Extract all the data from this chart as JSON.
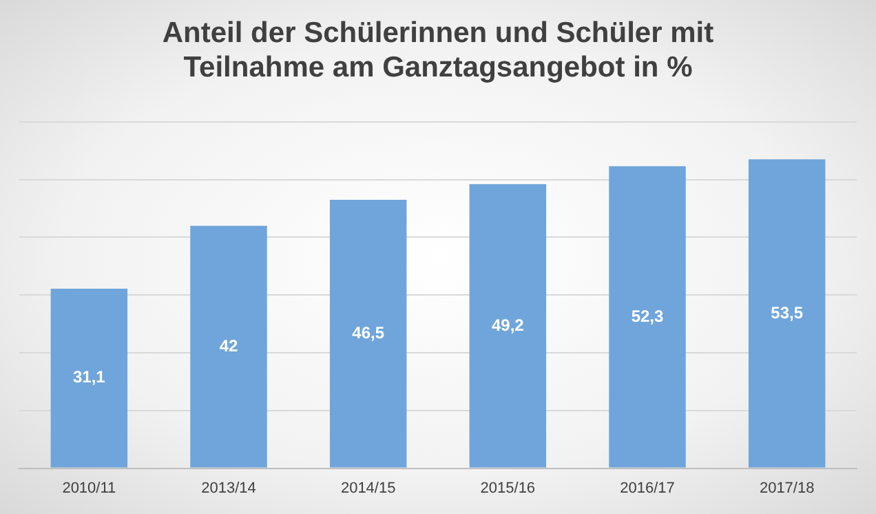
{
  "chart_data": {
    "type": "bar",
    "title": "Anteil der Schülerinnen und Schüler mit Teilnahme am Ganztagsangebot in %",
    "categories": [
      "2010/11",
      "2013/14",
      "2014/15",
      "2015/16",
      "2016/17",
      "2017/18"
    ],
    "values": [
      31.1,
      42,
      46.5,
      49.2,
      52.3,
      53.5
    ],
    "value_labels": [
      "31,1",
      "42",
      "46,5",
      "49,2",
      "52,3",
      "53,5"
    ],
    "color": "#6fa5da",
    "ylim": [
      0,
      60
    ],
    "yticks": [
      {
        "value": 0,
        "label": null
      },
      {
        "value": 10,
        "label": null
      },
      {
        "value": 20,
        "label": null
      },
      {
        "value": 30,
        "label": null
      },
      {
        "value": 40,
        "label": null
      },
      {
        "value": 50,
        "label": null
      },
      {
        "value": 60,
        "label": null
      }
    ],
    "grid": "y",
    "tick_labels": "x"
  }
}
